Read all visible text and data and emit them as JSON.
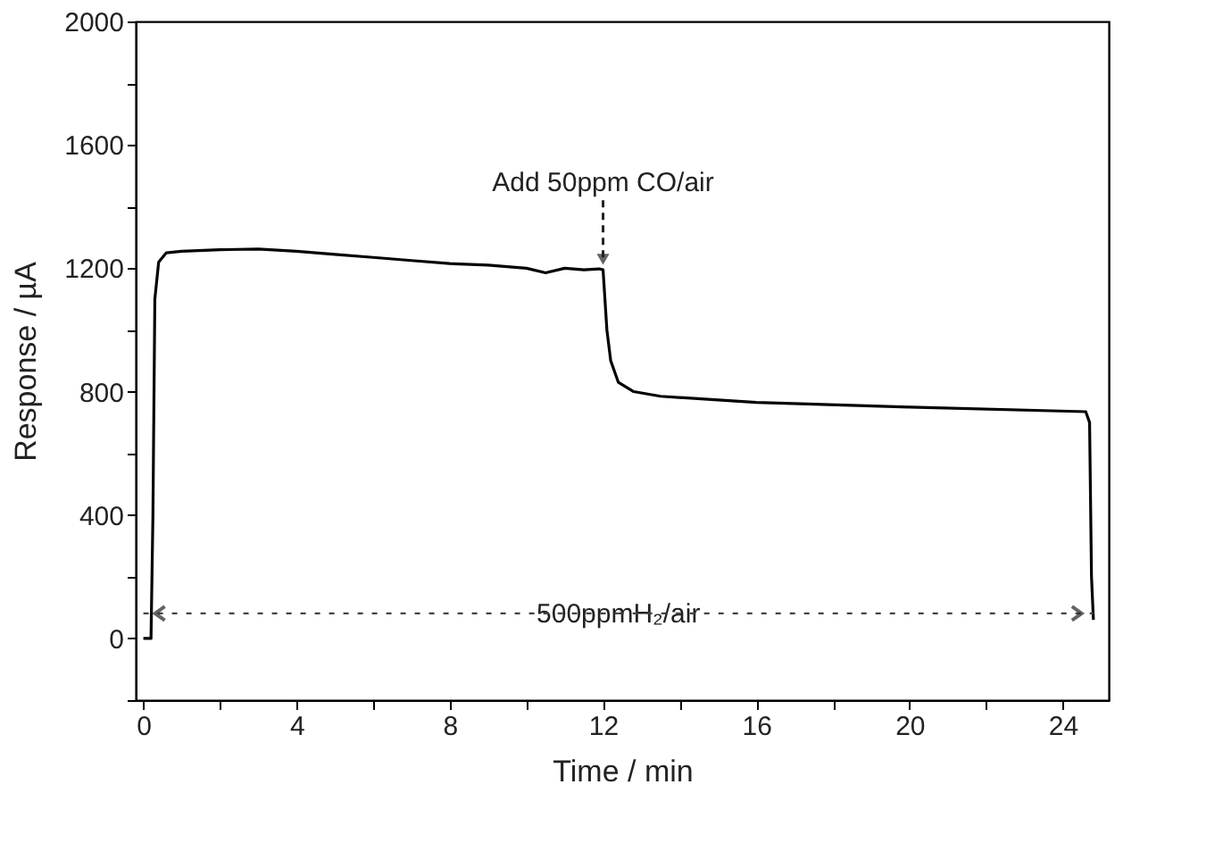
{
  "chart_data": {
    "type": "line",
    "xlabel": "Time / min",
    "ylabel": "Response / µA",
    "xlim": [
      -0.2,
      25.2
    ],
    "ylim": [
      -200,
      2000
    ],
    "xticks": [
      0,
      {
        "value": 2,
        "label": null
      },
      4,
      {
        "value": 6,
        "label": null
      },
      8,
      {
        "value": 10,
        "label": null
      },
      12,
      {
        "value": 14,
        "label": null
      },
      16,
      {
        "value": 18,
        "label": null
      },
      20,
      {
        "value": 22,
        "label": null
      },
      24
    ],
    "yticks": [
      {
        "value": -200,
        "label": null
      },
      0,
      {
        "value": 200,
        "label": null
      },
      400,
      {
        "value": 600,
        "label": null
      },
      800,
      {
        "value": 1000,
        "label": null
      },
      1200,
      {
        "value": 1400,
        "label": null
      },
      1600,
      {
        "value": 1800,
        "label": null
      },
      2000
    ],
    "grid": false,
    "marker": "none",
    "line_style": "solid",
    "x": [
      0,
      0.2,
      0.25,
      0.3,
      0.4,
      0.6,
      1,
      2,
      3,
      4,
      5,
      6,
      7,
      8,
      9,
      10,
      10.5,
      11,
      11.5,
      11.9,
      12.0,
      12.1,
      12.2,
      12.4,
      12.8,
      13.5,
      16,
      20,
      24.6,
      24.7,
      24.75,
      24.8
    ],
    "series": [
      {
        "color": "#000000",
        "values": [
          0,
          0,
          400,
          1100,
          1220,
          1250,
          1255,
          1260,
          1262,
          1255,
          1245,
          1235,
          1225,
          1215,
          1210,
          1200,
          1185,
          1200,
          1195,
          1198,
          1195,
          1000,
          900,
          830,
          800,
          785,
          765,
          750,
          735,
          700,
          200,
          60
        ]
      }
    ],
    "annotations": [
      {
        "text": "Add 50ppm CO/air",
        "x": 12,
        "y": 1200
      },
      "500ppmH₂/air"
    ]
  }
}
